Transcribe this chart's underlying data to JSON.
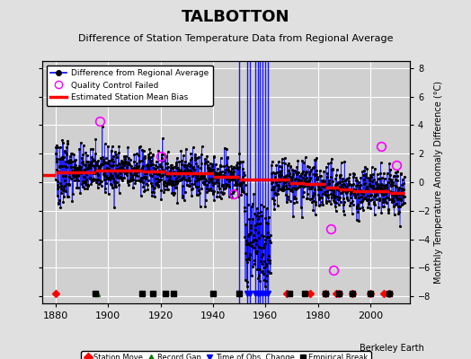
{
  "title": "TALBOTTON",
  "subtitle": "Difference of Station Temperature Data from Regional Average",
  "ylabel_right": "Monthly Temperature Anomaly Difference (°C)",
  "xlim": [
    1875,
    2015
  ],
  "ylim": [
    -8.5,
    8.5
  ],
  "yticks": [
    -8,
    -6,
    -4,
    -2,
    0,
    2,
    4,
    6,
    8
  ],
  "xticks": [
    1880,
    1900,
    1920,
    1940,
    1960,
    1980,
    2000
  ],
  "background_color": "#e0e0e0",
  "plot_bg_color": "#d0d0d0",
  "grid_color": "#ffffff",
  "station_moves": [
    1880,
    1968,
    1977,
    1983,
    1987,
    1988,
    1993,
    2000,
    2005,
    2007
  ],
  "record_gaps": [
    1896
  ],
  "obs_changes": [
    1950,
    1953,
    1954,
    1956,
    1957,
    1958,
    1959,
    1960,
    1961
  ],
  "empirical_breaks": [
    1895,
    1913,
    1917,
    1922,
    1925,
    1940,
    1950,
    1969,
    1975,
    1983,
    1988,
    1993,
    2000,
    2007
  ],
  "bias_segments": [
    {
      "x": [
        1875,
        1880
      ],
      "y": [
        0.5,
        0.5
      ]
    },
    {
      "x": [
        1880,
        1895
      ],
      "y": [
        0.7,
        0.7
      ]
    },
    {
      "x": [
        1895,
        1913
      ],
      "y": [
        0.85,
        0.85
      ]
    },
    {
      "x": [
        1913,
        1922
      ],
      "y": [
        0.75,
        0.75
      ]
    },
    {
      "x": [
        1922,
        1940
      ],
      "y": [
        0.6,
        0.6
      ]
    },
    {
      "x": [
        1940,
        1950
      ],
      "y": [
        0.4,
        0.4
      ]
    },
    {
      "x": [
        1950,
        1969
      ],
      "y": [
        0.2,
        0.2
      ]
    },
    {
      "x": [
        1969,
        1975
      ],
      "y": [
        -0.05,
        -0.05
      ]
    },
    {
      "x": [
        1975,
        1983
      ],
      "y": [
        -0.15,
        -0.15
      ]
    },
    {
      "x": [
        1983,
        1988
      ],
      "y": [
        -0.35,
        -0.35
      ]
    },
    {
      "x": [
        1988,
        1993
      ],
      "y": [
        -0.5,
        -0.5
      ]
    },
    {
      "x": [
        1993,
        2000
      ],
      "y": [
        -0.6,
        -0.6
      ]
    },
    {
      "x": [
        2000,
        2007
      ],
      "y": [
        -0.65,
        -0.65
      ]
    },
    {
      "x": [
        2007,
        2013
      ],
      "y": [
        -0.75,
        -0.75
      ]
    }
  ],
  "qc_failed_years": [
    1897,
    1920,
    1948,
    1985,
    1986,
    2004,
    2010
  ],
  "qc_failed_vals": [
    4.3,
    1.8,
    -0.8,
    -3.3,
    -6.2,
    2.5,
    1.2
  ],
  "seed": 42,
  "n_points": 1560,
  "year_start": 1880.0,
  "year_end": 2013.0,
  "marker_y": -7.8,
  "legend_labels": [
    "Difference from Regional Average",
    "Quality Control Failed",
    "Estimated Station Mean Bias"
  ],
  "bottom_legend_labels": [
    "Station Move",
    "Record Gap",
    "Time of Obs. Change",
    "Empirical Break"
  ],
  "berkeley_earth_text": "Berkeley Earth"
}
